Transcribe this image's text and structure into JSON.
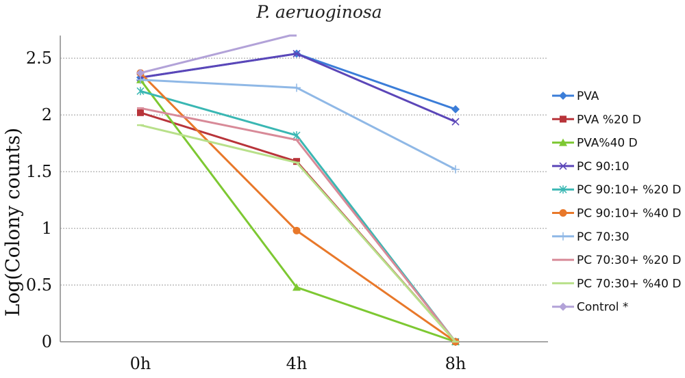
{
  "chart_data": {
    "type": "line",
    "title": "P. aeruoginosa",
    "xlabel": "",
    "ylabel": "Log(Colony counts)",
    "categories": [
      "0h",
      "4h",
      "8h"
    ],
    "ylim": [
      0,
      2.7
    ],
    "yticks": [
      "0",
      "0.5",
      "1",
      "1.5",
      "2",
      "2.5"
    ],
    "ytick_values": [
      0,
      0.5,
      1,
      1.5,
      2,
      2.5
    ],
    "grid": true,
    "legend_position": "right",
    "series": [
      {
        "name": "PVA",
        "values": [
          2.33,
          2.54,
          2.05
        ],
        "color": "#3b7dd8",
        "marker": "diamond"
      },
      {
        "name": "PVA %20 D",
        "values": [
          2.02,
          1.59,
          0
        ],
        "color": "#b8343a",
        "marker": "square"
      },
      {
        "name": "PVA%40 D",
        "values": [
          2.31,
          0.48,
          0
        ],
        "color": "#7dc832",
        "marker": "triangle"
      },
      {
        "name": "PC 90:10",
        "values": [
          2.33,
          2.54,
          1.94
        ],
        "color": "#5b46b8",
        "marker": "x"
      },
      {
        "name": "PC 90:10+ %20 D",
        "values": [
          2.21,
          1.82,
          0
        ],
        "color": "#3ab7b3",
        "marker": "asterisk"
      },
      {
        "name": "PC 90:10+ %40 D",
        "values": [
          2.37,
          0.98,
          0
        ],
        "color": "#e8782a",
        "marker": "circle"
      },
      {
        "name": "PC 70:30",
        "values": [
          2.31,
          2.24,
          1.52
        ],
        "color": "#8fb8e6",
        "marker": "plus"
      },
      {
        "name": "PC 70:30+ %20 D",
        "values": [
          2.06,
          1.78,
          0
        ],
        "color": "#d88a98",
        "marker": "dash"
      },
      {
        "name": "PC 70:30+ %40 D",
        "values": [
          1.91,
          1.58,
          0
        ],
        "color": "#b8e08a",
        "marker": "dash"
      },
      {
        "name": "Control *",
        "values": [
          2.37,
          2.7,
          null
        ],
        "color": "#b2a2d8",
        "marker": "diamond"
      }
    ]
  }
}
